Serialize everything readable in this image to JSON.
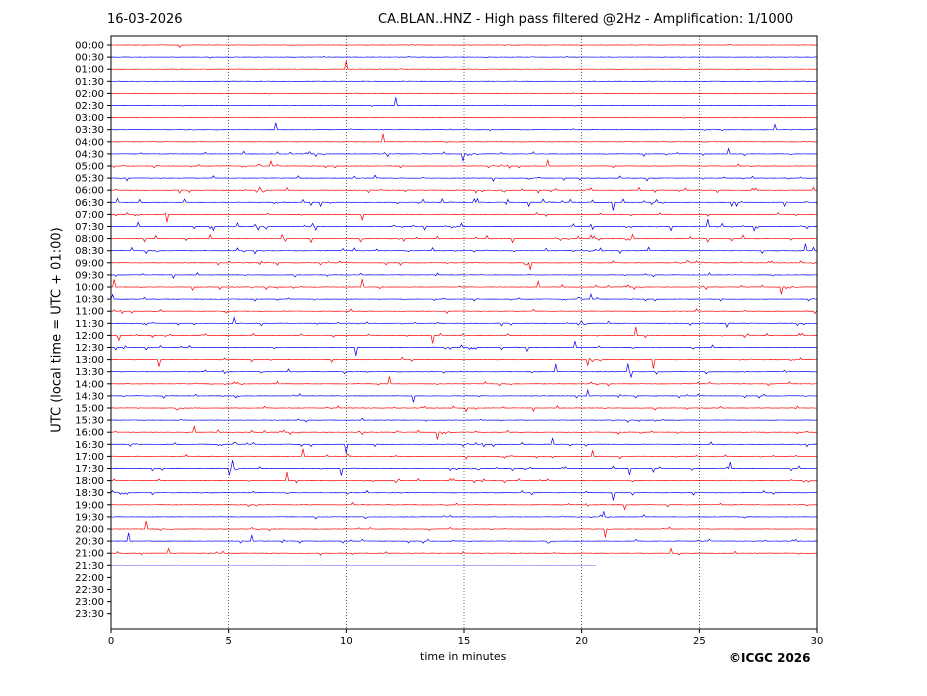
{
  "header": {
    "date": "16-03-2026",
    "title": "CA.BLAN..HNZ - High pass filtered @2Hz - Amplification: 1/1000"
  },
  "footer": {
    "copyright": "©ICGC 2026"
  },
  "chart_data": {
    "type": "line",
    "title": "CA.BLAN..HNZ - High pass filtered @2Hz - Amplification: 1/1000",
    "xlabel": "time in minutes",
    "ylabel": "UTC (local time = UTC + 01:00)",
    "xlim": [
      0,
      30
    ],
    "xticks": [
      "0",
      "5",
      "10",
      "15",
      "20",
      "25",
      "30"
    ],
    "grid": "vertical dotted lines at every 5 minutes",
    "rows": [
      "00:00",
      "00:30",
      "01:00",
      "01:30",
      "02:00",
      "02:30",
      "03:00",
      "03:30",
      "04:00",
      "04:30",
      "05:00",
      "05:30",
      "06:00",
      "06:30",
      "07:00",
      "07:30",
      "08:00",
      "08:30",
      "09:00",
      "09:30",
      "10:00",
      "10:30",
      "11:00",
      "11:30",
      "12:00",
      "12:30",
      "13:00",
      "13:30",
      "14:00",
      "14:30",
      "15:00",
      "15:30",
      "16:00",
      "16:30",
      "17:00",
      "17:30",
      "18:00",
      "18:30",
      "19:00",
      "19:30",
      "20:00",
      "20:30",
      "21:00",
      "21:30",
      "22:00",
      "22:30",
      "23:00",
      "23:30"
    ],
    "row_colors": [
      "#ff0000",
      "#0000ff"
    ],
    "recorded_until": {
      "row": "21:30",
      "minute": 20.6
    },
    "activity": [
      0.15,
      0.25,
      0.15,
      0.1,
      0.2,
      0.2,
      0.15,
      0.25,
      0.3,
      0.6,
      0.5,
      0.7,
      0.7,
      0.9,
      0.4,
      0.95,
      0.95,
      0.8,
      0.55,
      0.5,
      0.55,
      0.5,
      0.55,
      0.6,
      0.5,
      0.55,
      0.55,
      0.6,
      0.55,
      0.5,
      0.5,
      0.5,
      0.55,
      0.6,
      0.6,
      0.55,
      0.5,
      0.5,
      0.45,
      0.5,
      0.45,
      0.5,
      0.45,
      0.05,
      0,
      0,
      0,
      0
    ]
  }
}
